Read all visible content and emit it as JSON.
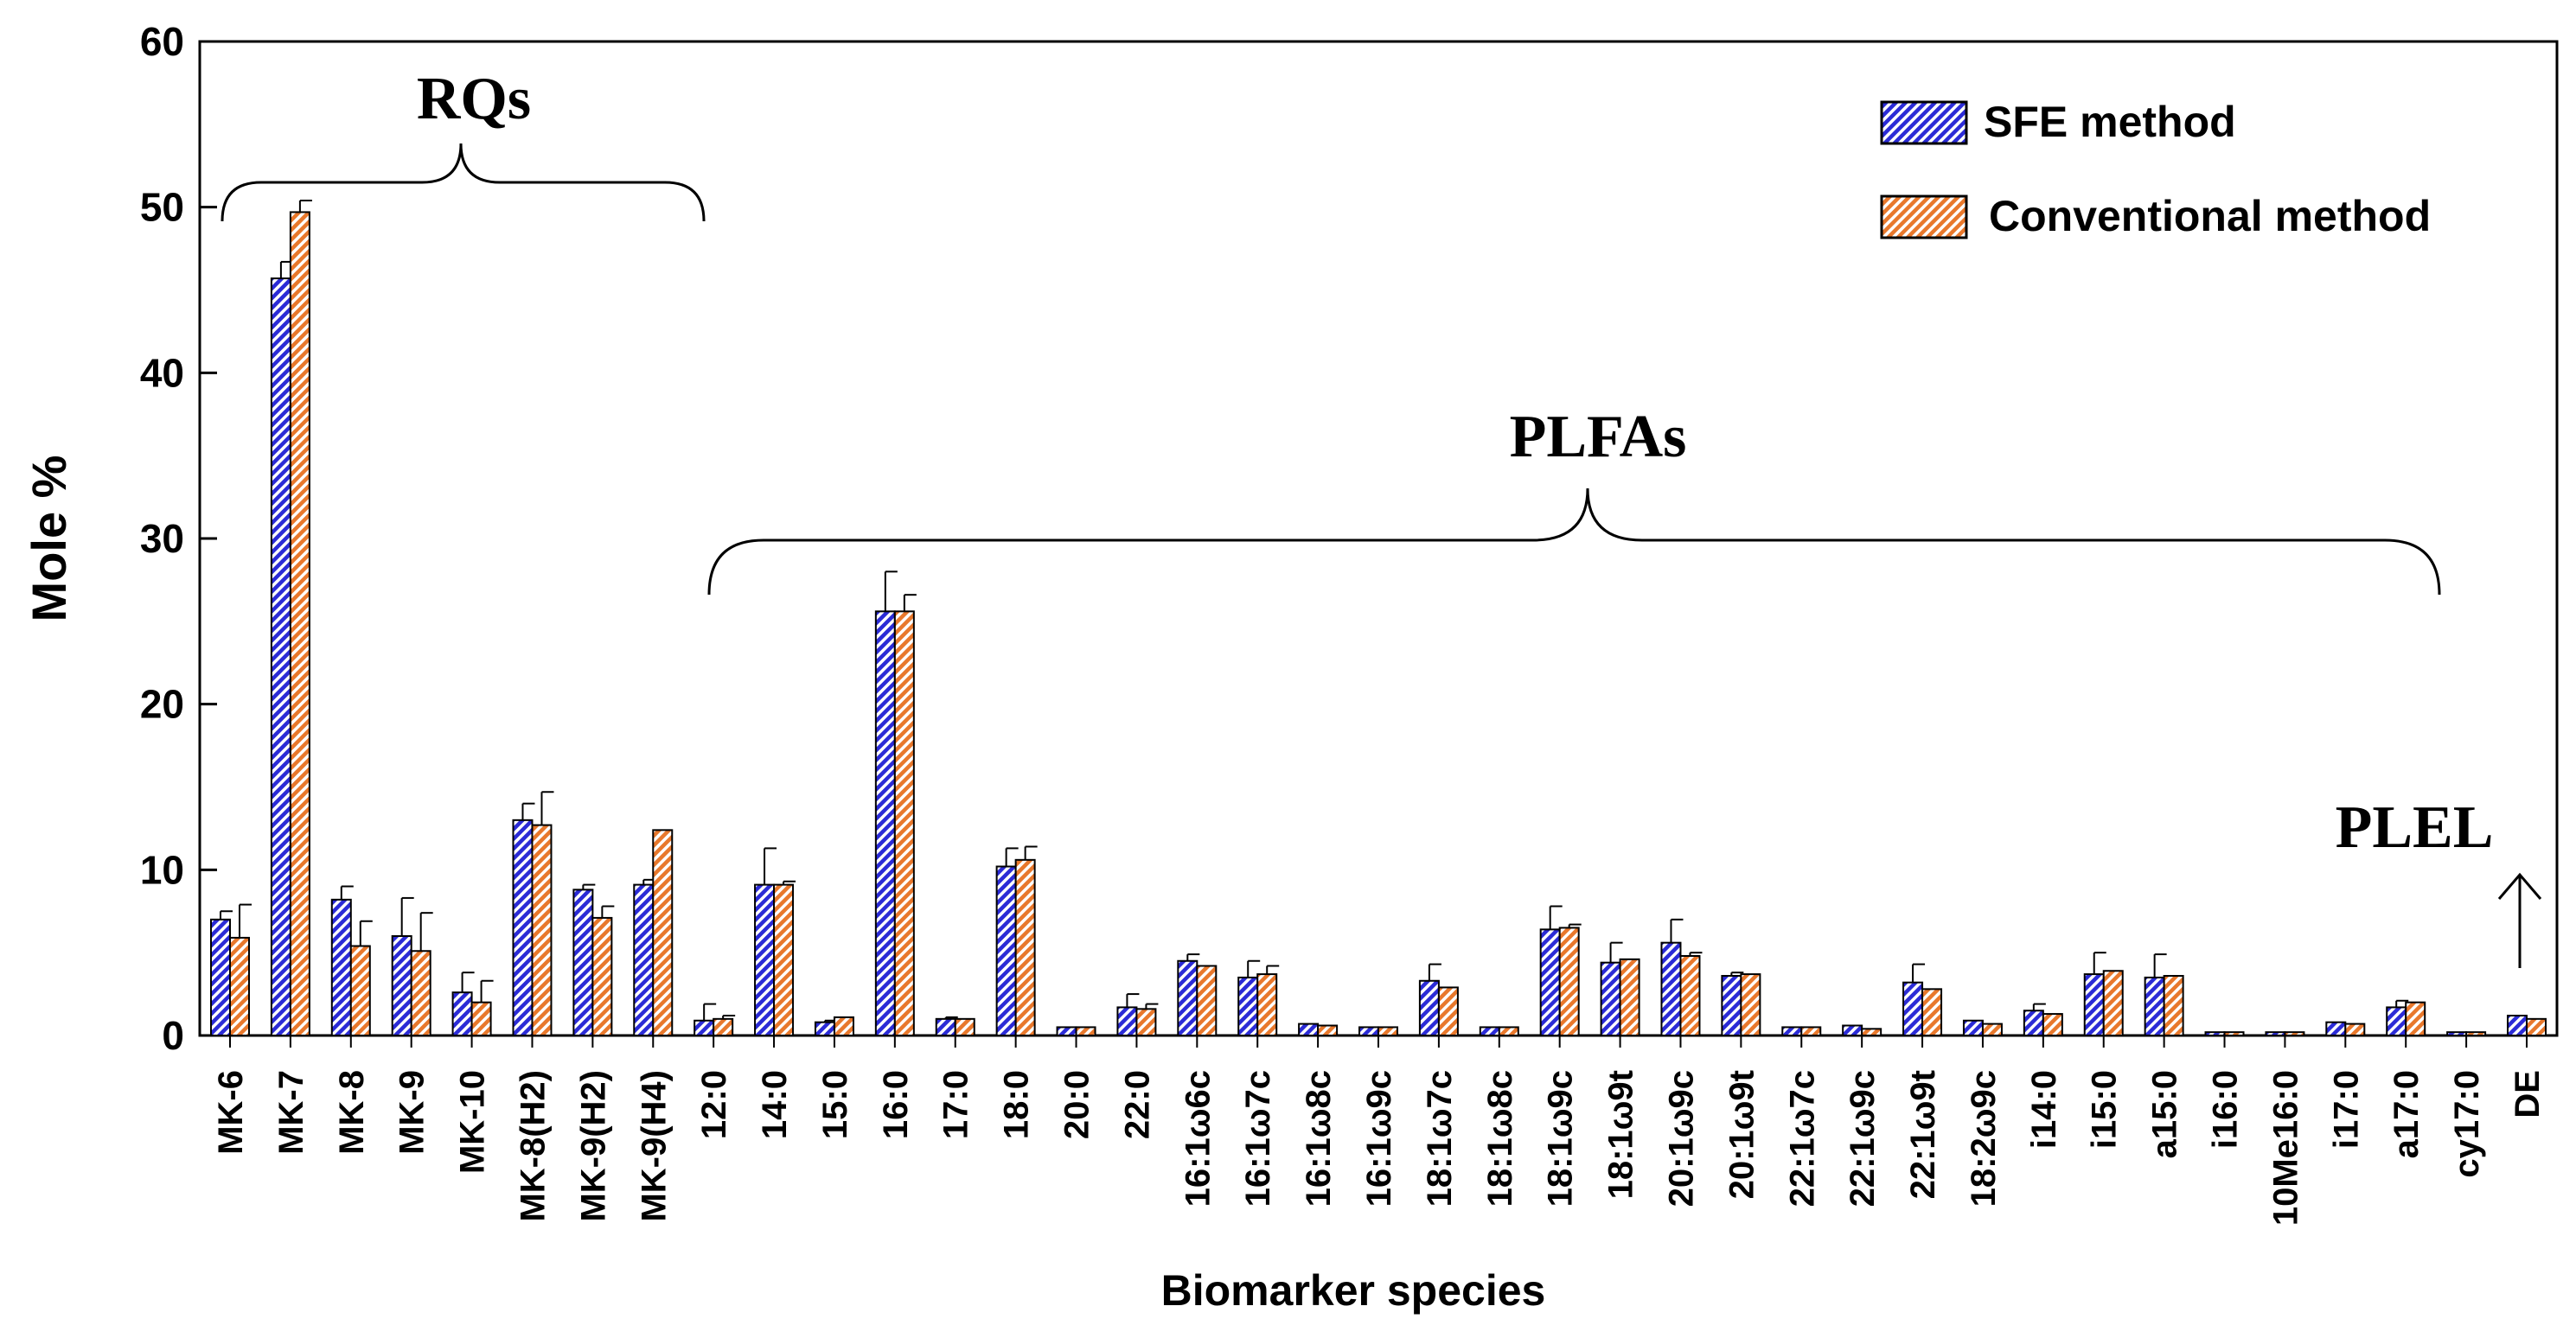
{
  "chart_data": {
    "type": "bar",
    "title": "",
    "xlabel": "Biomarker species",
    "ylabel": "Mole %",
    "ylim": [
      0,
      60
    ],
    "yticks": [
      0,
      10,
      20,
      30,
      40,
      50,
      60
    ],
    "grid": false,
    "legend_position": "top-right",
    "categories": [
      "MK-6",
      "MK-7",
      "MK-8",
      "MK-9",
      "MK-10",
      "MK-8(H2)",
      "MK-9(H2)",
      "MK-9(H4)",
      "12:0",
      "14:0",
      "15:0",
      "16:0",
      "17:0",
      "18:0",
      "20:0",
      "22:0",
      "16:1ω6c",
      "16:1ω7c",
      "16:1ω8c",
      "16:1ω9c",
      "18:1ω7c",
      "18:1ω8c",
      "18:1ω9c",
      "18:1ω9t",
      "20:1ω9c",
      "20:1ω9t",
      "22:1ω7c",
      "22:1ω9c",
      "22:1ω9t",
      "18:2ω9c",
      "i14:0",
      "i15:0",
      "a15:0",
      "i16:0",
      "10Me16:0",
      "i17:0",
      "a17:0",
      "cy17:0",
      "DE"
    ],
    "series": [
      {
        "name": "SFE method",
        "color": "#2b2bd6",
        "values": [
          7.0,
          45.7,
          8.2,
          6.0,
          2.6,
          13.0,
          8.8,
          9.1,
          0.9,
          9.1,
          0.8,
          25.6,
          1.0,
          10.2,
          0.5,
          1.7,
          4.5,
          3.5,
          0.7,
          0.5,
          3.3,
          0.5,
          6.4,
          4.4,
          5.6,
          3.6,
          0.5,
          0.6,
          3.2,
          0.9,
          1.5,
          3.7,
          3.5,
          0.2,
          0.2,
          0.8,
          1.7,
          0.2,
          1.2
        ],
        "errors": [
          0.5,
          1.0,
          0.8,
          2.3,
          1.2,
          1.0,
          0.3,
          0.3,
          1.0,
          2.2,
          0.1,
          2.4,
          0.1,
          1.1,
          0.0,
          0.8,
          0.4,
          1.0,
          0.0,
          0.0,
          1.0,
          0.0,
          1.4,
          1.2,
          1.4,
          0.2,
          0.0,
          0.0,
          1.1,
          0.0,
          0.4,
          1.3,
          1.4,
          0.0,
          0.0,
          0.0,
          0.4,
          0.0,
          0.0
        ]
      },
      {
        "name": "Conventional method",
        "color": "#e8782c",
        "values": [
          5.9,
          49.7,
          5.4,
          5.1,
          2.0,
          12.7,
          7.1,
          12.4,
          1.0,
          9.1,
          1.1,
          25.6,
          1.0,
          10.6,
          0.5,
          1.6,
          4.2,
          3.7,
          0.6,
          0.5,
          2.9,
          0.5,
          6.5,
          4.6,
          4.8,
          3.7,
          0.5,
          0.4,
          2.8,
          0.7,
          1.3,
          3.9,
          3.6,
          0.2,
          0.2,
          0.7,
          2.0,
          0.2,
          1.0
        ],
        "errors": [
          2.0,
          0.7,
          1.5,
          2.3,
          1.3,
          2.0,
          0.7,
          0.0,
          0.2,
          0.2,
          0.0,
          1.0,
          0.0,
          0.8,
          0.0,
          0.3,
          0.0,
          0.5,
          0.0,
          0.0,
          0.0,
          0.0,
          0.2,
          0.0,
          0.2,
          0.0,
          0.0,
          0.0,
          0.0,
          0.0,
          0.0,
          0.0,
          0.0,
          0.0,
          0.0,
          0.0,
          0.0,
          0.0,
          0.0
        ]
      }
    ],
    "group_labels": [
      "RQs",
      "PLFAs",
      "PLEL"
    ]
  }
}
